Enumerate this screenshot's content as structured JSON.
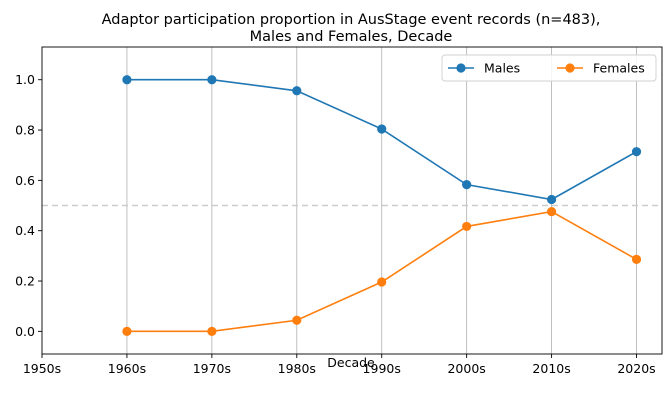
{
  "chart_data": {
    "type": "line",
    "title": "Adaptor participation proportion in AusStage event records (n=483),",
    "subtitle": "Males and Females, Decade",
    "xlabel": "Decade",
    "ylabel": "",
    "categories": [
      "1950s",
      "1960s",
      "1970s",
      "1980s",
      "1990s",
      "2000s",
      "2010s",
      "2020s"
    ],
    "ylim": [
      -0.09,
      1.13
    ],
    "yticks": [
      "0.0",
      "0.2",
      "0.4",
      "0.6",
      "0.8",
      "1.0"
    ],
    "reference_line": 0.5,
    "grid": "vertical",
    "legend_position": "top-right",
    "series": [
      {
        "name": "Males",
        "color": "#1f77b4",
        "x": [
          "1960s",
          "1970s",
          "1980s",
          "1990s",
          "2000s",
          "2010s",
          "2020s"
        ],
        "values": [
          1.0,
          1.0,
          0.956,
          0.804,
          0.583,
          0.524,
          0.714
        ]
      },
      {
        "name": "Females",
        "color": "#ff7f0e",
        "x": [
          "1960s",
          "1970s",
          "1980s",
          "1990s",
          "2000s",
          "2010s",
          "2020s"
        ],
        "values": [
          0.0,
          0.0,
          0.044,
          0.196,
          0.417,
          0.476,
          0.286
        ]
      }
    ]
  }
}
